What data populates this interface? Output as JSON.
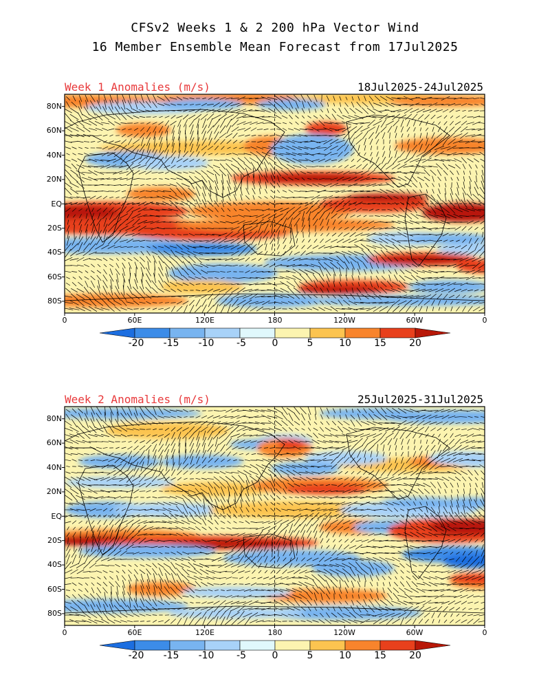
{
  "header": {
    "title_line1": "CFSv2 Weeks 1 & 2 200 hPa Vector Wind",
    "title_line2": "16 Member Ensemble Mean Forecast from 17Jul2025"
  },
  "panels": [
    {
      "label": "Week 1 Anomalies (m/s)",
      "date_range": "18Jul2025-24Jul2025"
    },
    {
      "label": "Week 2 Anomalies (m/s)",
      "date_range": "25Jul2025-31Jul2025"
    }
  ],
  "axes": {
    "lat_labels": [
      "80N",
      "60N",
      "40N",
      "20N",
      "EQ",
      "20S",
      "40S",
      "60S",
      "80S"
    ],
    "lon_labels": [
      "0",
      "60E",
      "120E",
      "180",
      "120W",
      "60W",
      "0"
    ]
  },
  "colorbar": {
    "labels": [
      "-20",
      "-15",
      "-10",
      "-5",
      "0",
      "5",
      "10",
      "15",
      "20"
    ],
    "colors": [
      "#1c6ee0",
      "#3c8ce8",
      "#78b4f0",
      "#a8d2f8",
      "#e0f8fc",
      "#fcf4b0",
      "#fcc450",
      "#f8842c",
      "#e8401c",
      "#b81808"
    ]
  }
}
